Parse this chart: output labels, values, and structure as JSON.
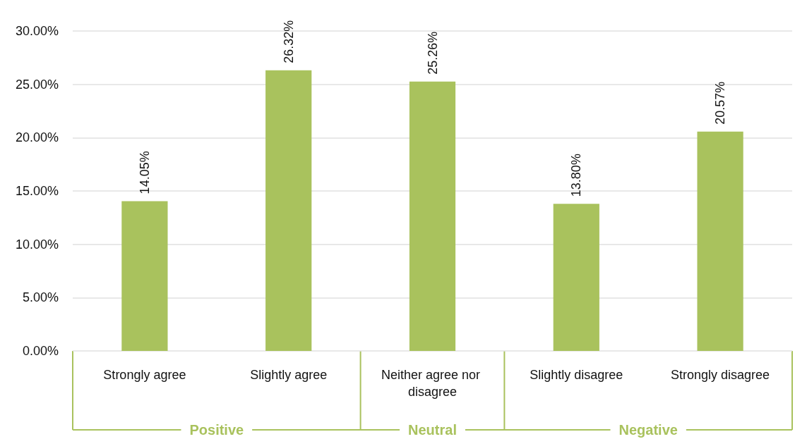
{
  "chart_data": {
    "type": "bar",
    "categories": [
      "Strongly agree",
      "Slightly agree",
      "Neither agree nor disagree",
      "Slightly disagree",
      "Strongly disagree"
    ],
    "values": [
      14.05,
      26.32,
      25.26,
      13.8,
      20.57
    ],
    "value_labels": [
      "14.05%",
      "26.32%",
      "25.26%",
      "13.80%",
      "20.57%"
    ],
    "color": "#a9c25d",
    "ylim": [
      0,
      30
    ],
    "yticks": [
      {
        "value": 0,
        "label": "0.00%"
      },
      {
        "value": 5,
        "label": "5.00%"
      },
      {
        "value": 10,
        "label": "10.00%"
      },
      {
        "value": 15,
        "label": "15.00%"
      },
      {
        "value": 20,
        "label": "20.00%"
      },
      {
        "value": 25,
        "label": "25.00%"
      },
      {
        "value": 30,
        "label": "30.00%"
      }
    ],
    "grid": "y",
    "annotations": [
      "Positive",
      "Neutral",
      "Negative"
    ]
  }
}
